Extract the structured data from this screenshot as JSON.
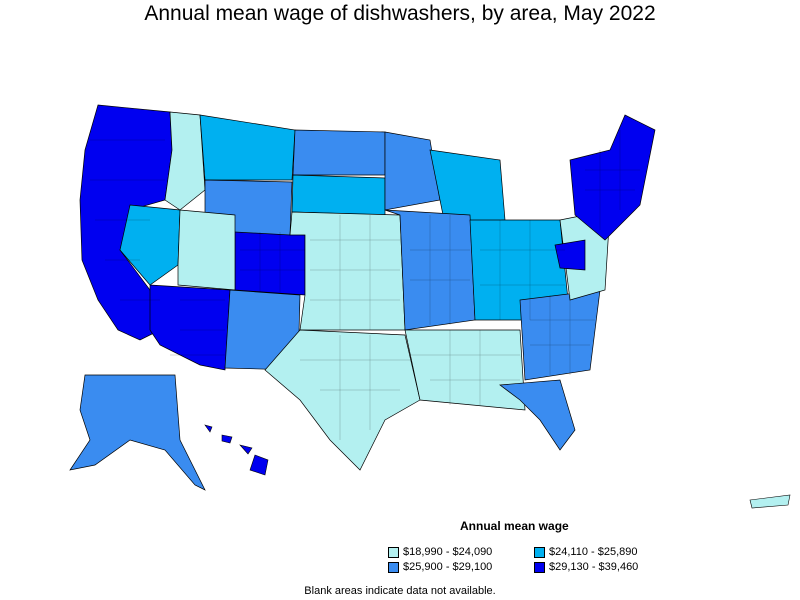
{
  "title": "Annual mean wage of dishwashers, by area, May 2022",
  "legend": {
    "title": "Annual mean wage",
    "items": [
      {
        "label": "$18,990 - $24,090",
        "color": "#b3f0f0"
      },
      {
        "label": "$24,110 - $25,890",
        "color": "#00b0f0"
      },
      {
        "label": "$25,900 - $29,100",
        "color": "#3a8cf0"
      },
      {
        "label": "$29,130 - $39,460",
        "color": "#0000f0"
      }
    ]
  },
  "note": "Blank areas indicate data not available."
}
